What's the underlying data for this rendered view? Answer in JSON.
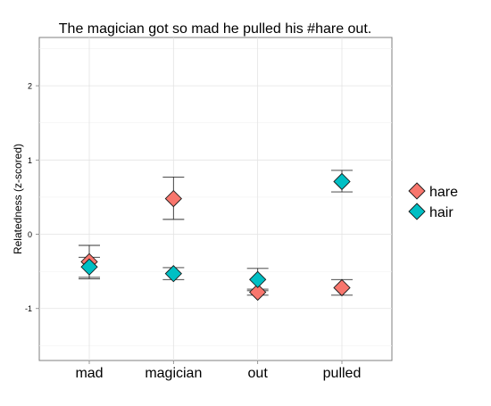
{
  "chart_data": {
    "type": "scatter",
    "title": "The magician got so mad he pulled his #hare out.",
    "xlabel": "",
    "ylabel": "Relatedness (z-scored)",
    "categories": [
      "mad",
      "magician",
      "out",
      "pulled"
    ],
    "ylim": [
      -1.7,
      2.65
    ],
    "yticks": [
      -1,
      0,
      1,
      2
    ],
    "grid": true,
    "legend_position": "right",
    "series": [
      {
        "name": "hare",
        "color": "#F8766D",
        "values": [
          -0.37,
          0.48,
          -0.78,
          -0.72
        ],
        "error_low": [
          -0.58,
          0.2,
          -0.82,
          -0.82
        ],
        "error_high": [
          -0.15,
          0.77,
          -0.74,
          -0.61
        ]
      },
      {
        "name": "hair",
        "color": "#00BFC4",
        "values": [
          -0.44,
          -0.53,
          -0.61,
          0.71
        ],
        "error_low": [
          -0.6,
          -0.61,
          -0.76,
          0.57
        ],
        "error_high": [
          -0.31,
          -0.45,
          -0.46,
          0.86
        ]
      }
    ]
  }
}
